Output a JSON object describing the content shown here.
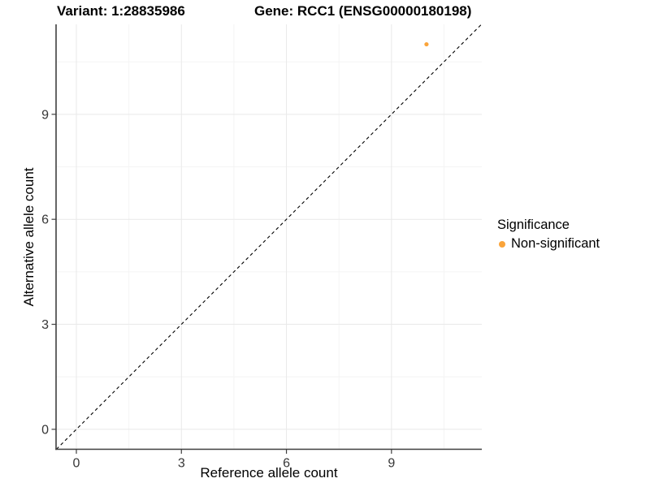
{
  "chart_data": {
    "type": "scatter",
    "title_variant": "Variant: 1:28835986",
    "title_gene": "Gene: RCC1 (ENSG00000180198)",
    "xlabel": "Reference allele count",
    "ylabel": "Alternative allele count",
    "xlim": [
      -0.58,
      11.58
    ],
    "ylim": [
      -0.57,
      11.57
    ],
    "xticks": [
      0,
      3,
      6,
      9
    ],
    "yticks": [
      0,
      3,
      6,
      9
    ],
    "xminor": [
      1.5,
      4.5,
      7.5,
      10.5
    ],
    "yminor": [
      1.5,
      4.5,
      7.5,
      10.5
    ],
    "grid": true,
    "identity_line": {
      "equation": "y = x",
      "style": "dashed",
      "color": "#000000"
    },
    "series": [
      {
        "name": "Non-significant",
        "color": "#FAA43A",
        "points": [
          {
            "x": 10,
            "y": 11
          }
        ]
      }
    ],
    "legend": {
      "title": "Significance",
      "position": "right",
      "items": [
        {
          "label": "Non-significant",
          "color": "#FAA43A"
        }
      ]
    },
    "colors": {
      "background": "#FFFFFF",
      "grid_major": "#E9E9E9",
      "grid_minor": "#F4F4F4",
      "axis_line": "#3F3F3F",
      "tick_label": "#363636",
      "title": "#000000"
    }
  }
}
